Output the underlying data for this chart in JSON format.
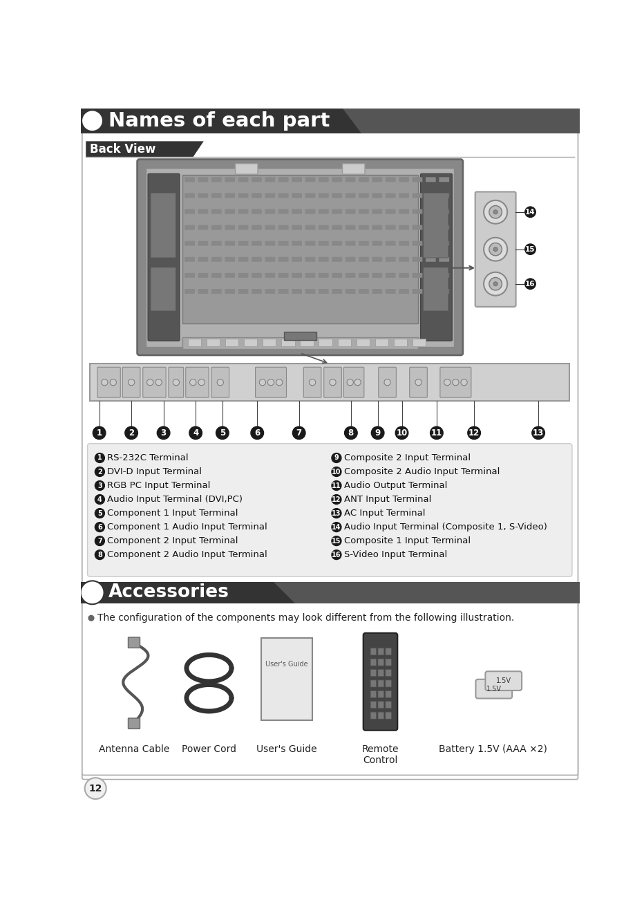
{
  "title": "Names of each part",
  "accessories_title": "Accessories",
  "back_view_label": "Back View",
  "page_number": "12",
  "bg_color": "#ffffff",
  "header_bg": "#333333",
  "left_labels": [
    "RS-232C Terminal",
    "DVI-D Input Terminal",
    "RGB PC Input Terminal",
    "Audio Input Terminal (DVI,PC)",
    "Component 1 Input Terminal",
    "Component 1 Audio Input Terminal",
    "Component 2 Input Terminal",
    "Component 2 Audio Input Terminal"
  ],
  "right_labels": [
    "Composite 2 Input Terminal",
    "Composite 2 Audio Input Terminal",
    "Audio Output Terminal",
    "ANT Input Terminal",
    "AC Input Terminal",
    "Audio Input Terminal (Composite 1, S-Video)",
    "Composite 1 Input Terminal",
    "S-Video Input Terminal"
  ],
  "accessories_note": "The configuration of the components may look different from the following illustration.",
  "accessory_items": [
    "Antenna Cable",
    "Power Cord",
    "User's Guide",
    "Remote\nControl",
    "Battery 1.5V (AAA ×2)"
  ],
  "left_nums": [
    1,
    2,
    3,
    4,
    5,
    6,
    7,
    8
  ],
  "right_nums": [
    9,
    10,
    11,
    12,
    13,
    14,
    15,
    16
  ]
}
